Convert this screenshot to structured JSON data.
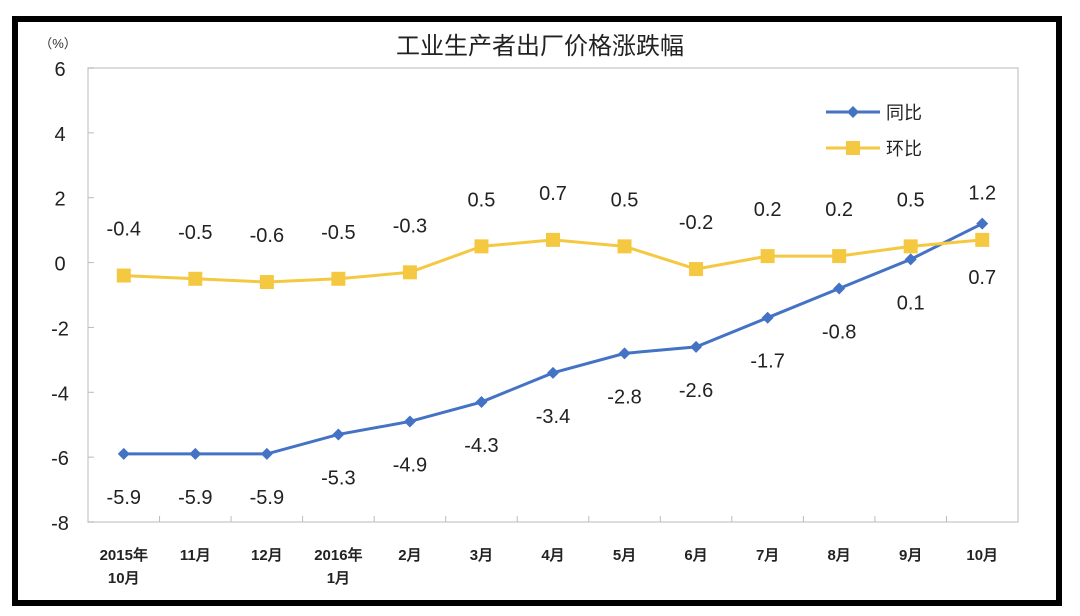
{
  "chart_data": {
    "type": "line",
    "title": "工业生产者出厂价格涨跌幅",
    "ylabel": "（%）",
    "ylim": [
      -8,
      6
    ],
    "yticks": [
      6,
      4,
      2,
      0,
      -2,
      -4,
      -6,
      -8
    ],
    "grid": false,
    "legend_position": "top-right",
    "categories": [
      [
        "2015年",
        "10月"
      ],
      [
        "11月"
      ],
      [
        "12月"
      ],
      [
        "2016年",
        "1月"
      ],
      [
        "2月"
      ],
      [
        "3月"
      ],
      [
        "4月"
      ],
      [
        "5月"
      ],
      [
        "6月"
      ],
      [
        "7月"
      ],
      [
        "8月"
      ],
      [
        "9月"
      ],
      [
        "10月"
      ]
    ],
    "series": [
      {
        "name": "同比",
        "color": "#4472C4",
        "marker": "diamond",
        "values": [
          -5.9,
          -5.9,
          -5.9,
          -5.3,
          -4.9,
          -4.3,
          -3.4,
          -2.8,
          -2.6,
          -1.7,
          -0.8,
          0.1,
          1.2
        ]
      },
      {
        "name": "环比",
        "color": "#F5C842",
        "marker": "square",
        "values": [
          -0.4,
          -0.5,
          -0.6,
          -0.5,
          -0.3,
          0.5,
          0.7,
          0.5,
          -0.2,
          0.2,
          0.2,
          0.5,
          0.7
        ]
      }
    ]
  }
}
